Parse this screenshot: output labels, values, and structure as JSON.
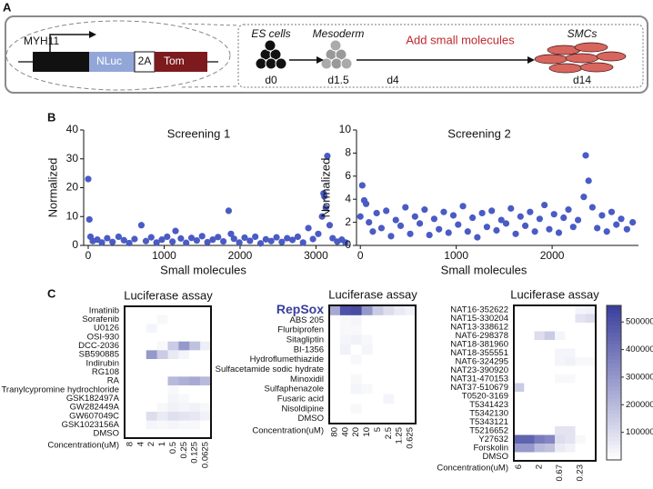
{
  "panel_labels": [
    "A",
    "B",
    "C"
  ],
  "diagram": {
    "gene": "MYH11",
    "segments": [
      "NLuc",
      "2A",
      "Tom"
    ],
    "stages": [
      {
        "label": "ES cells",
        "day": "d0"
      },
      {
        "label": "Mesoderm",
        "day": "d1.5"
      },
      {
        "label": "Add small molecules",
        "day": "d4"
      },
      {
        "label": "SMCs",
        "day": "d14"
      }
    ]
  },
  "color_scale": {
    "zlim": [
      0,
      560000
    ],
    "zticks": [
      100000,
      200000,
      300000,
      400000,
      500000
    ],
    "colors": [
      "#ffffff",
      "#393e9c"
    ]
  },
  "chart_data": [
    {
      "type": "scatter",
      "title": "Screening 1",
      "x_label": "Small molecules",
      "y_label": "Normalized",
      "color": "#4a5bc4",
      "xlim": [
        -60,
        3450
      ],
      "ylim": [
        0,
        40
      ],
      "xticks": [
        0,
        1000,
        2000,
        3000
      ],
      "yticks": [
        0,
        10,
        20,
        30,
        40
      ],
      "x": [
        0,
        15,
        30,
        60,
        120,
        180,
        250,
        320,
        400,
        470,
        540,
        610,
        700,
        760,
        830,
        900,
        970,
        1040,
        1110,
        1150,
        1220,
        1290,
        1360,
        1430,
        1500,
        1570,
        1640,
        1710,
        1780,
        1850,
        1880,
        1920,
        1990,
        2060,
        2130,
        2200,
        2270,
        2340,
        2410,
        2480,
        2550,
        2620,
        2690,
        2760,
        2830,
        2900,
        2960,
        3030,
        3080,
        3100,
        3110,
        3130,
        3150,
        3180,
        3220,
        3280,
        3340,
        3390
      ],
      "values": [
        23,
        9,
        3,
        1.5,
        2,
        1,
        2.5,
        1.2,
        3,
        1.8,
        0.8,
        2.2,
        7,
        1.5,
        2.8,
        1,
        2,
        3,
        1.3,
        5,
        2.4,
        0.9,
        2.6,
        1.7,
        3.2,
        1.1,
        2,
        2.9,
        1.4,
        12,
        4,
        2.3,
        1,
        2.7,
        1.6,
        3,
        0.7,
        2.1,
        1.5,
        2.8,
        1.2,
        2.5,
        1.9,
        3,
        1,
        6,
        2.2,
        4,
        10,
        18,
        17,
        13,
        31,
        7,
        2.5,
        1.3,
        2,
        1
      ]
    },
    {
      "type": "scatter",
      "title": "Screening 2",
      "x_label": "Small molecules",
      "y_label": "Normalized",
      "color": "#4a5bc4",
      "xlim": [
        -40,
        2900
      ],
      "ylim": [
        0,
        10
      ],
      "xticks": [
        0,
        1000,
        2000
      ],
      "yticks": [
        0,
        2,
        4,
        6,
        8,
        10
      ],
      "x": [
        0,
        20,
        40,
        60,
        90,
        130,
        170,
        220,
        270,
        320,
        370,
        420,
        470,
        520,
        570,
        620,
        670,
        720,
        770,
        820,
        870,
        920,
        970,
        1020,
        1070,
        1120,
        1170,
        1220,
        1270,
        1320,
        1370,
        1420,
        1470,
        1520,
        1570,
        1620,
        1670,
        1720,
        1770,
        1820,
        1870,
        1920,
        1970,
        2020,
        2070,
        2120,
        2170,
        2220,
        2270,
        2330,
        2350,
        2380,
        2420,
        2470,
        2520,
        2570,
        2620,
        2670,
        2720,
        2780,
        2840
      ],
      "values": [
        2.5,
        5.2,
        3.9,
        3.6,
        2,
        1.2,
        2.8,
        1.5,
        3,
        0.8,
        2.2,
        1.7,
        3.3,
        1,
        2.5,
        1.9,
        3.1,
        0.9,
        2.3,
        1.4,
        2.9,
        1.1,
        2.6,
        1.8,
        3.4,
        1.2,
        2.4,
        0.7,
        2.8,
        1.6,
        3,
        1.3,
        2.2,
        1.9,
        3.2,
        1,
        2.5,
        1.7,
        2.9,
        1.2,
        2.3,
        3.5,
        1.4,
        2.7,
        1.1,
        2.4,
        3.1,
        1.6,
        2.2,
        4.2,
        7.8,
        5.6,
        3.3,
        1.5,
        2.6,
        1.2,
        2.9,
        1.8,
        2.3,
        1.4,
        2
      ]
    },
    {
      "type": "heatmap",
      "title": "Luciferase assay",
      "x_label": "Concentration(uM)",
      "rows": [
        "Imatinib",
        "Sorafenib",
        "U0126",
        "OSI-930",
        "DCC-2036",
        "SB590885",
        "Indirubin",
        "RG108",
        "RA",
        "Tranylcypromine hydrochloride",
        "GSK182497A",
        "GW282449A",
        "GW607049C",
        "GSK1023156A",
        "DMSO"
      ],
      "columns": [
        8,
        4,
        2,
        1,
        0.5,
        0.25,
        0.125,
        0.0625
      ],
      "values": [
        [
          0,
          0,
          0,
          0,
          0,
          0,
          0,
          0
        ],
        [
          0,
          0,
          0,
          20000,
          0,
          0,
          0,
          0
        ],
        [
          0,
          0,
          30000,
          0,
          0,
          0,
          0,
          0
        ],
        [
          0,
          0,
          0,
          0,
          0,
          0,
          0,
          0
        ],
        [
          0,
          0,
          0,
          20000,
          150000,
          300000,
          180000,
          50000
        ],
        [
          0,
          0,
          300000,
          150000,
          60000,
          30000,
          0,
          0
        ],
        [
          0,
          0,
          0,
          0,
          0,
          0,
          0,
          0
        ],
        [
          0,
          0,
          0,
          0,
          0,
          0,
          0,
          0
        ],
        [
          0,
          0,
          0,
          0,
          200000,
          230000,
          250000,
          200000
        ],
        [
          0,
          0,
          0,
          0,
          20000,
          0,
          0,
          0
        ],
        [
          0,
          0,
          0,
          0,
          30000,
          20000,
          0,
          0
        ],
        [
          0,
          0,
          0,
          20000,
          40000,
          30000,
          40000,
          20000
        ],
        [
          0,
          0,
          100000,
          60000,
          90000,
          80000,
          70000,
          40000
        ],
        [
          0,
          0,
          30000,
          20000,
          30000,
          20000,
          20000,
          0
        ],
        [
          0,
          0,
          0,
          0,
          0,
          0,
          0,
          0
        ]
      ]
    },
    {
      "type": "heatmap",
      "title": "Luciferase assay",
      "x_label": "Concentration(uM)",
      "highlight_row": 0,
      "rows": [
        "RepSox",
        "ABS 205",
        "Flurbiprofen",
        "Sitagliptin",
        "BI-1356",
        "Hydroflumethiazide",
        "Sulfacetamide sodic hydrate",
        "Minoxidil",
        "Sulfaphenazole",
        "Fusaric acid",
        "Nisoldipine",
        "DMSO"
      ],
      "columns": [
        80,
        40,
        20,
        10,
        5,
        2.5,
        1.25,
        0.625
      ],
      "values": [
        [
          250000,
          500000,
          520000,
          300000,
          150000,
          100000,
          60000,
          40000
        ],
        [
          0,
          20000,
          30000,
          0,
          0,
          0,
          0,
          0
        ],
        [
          0,
          20000,
          20000,
          0,
          0,
          0,
          0,
          0
        ],
        [
          0,
          30000,
          40000,
          20000,
          0,
          0,
          0,
          0
        ],
        [
          0,
          40000,
          0,
          30000,
          0,
          0,
          0,
          0
        ],
        [
          0,
          0,
          20000,
          0,
          0,
          0,
          0,
          0
        ],
        [
          0,
          0,
          0,
          0,
          0,
          0,
          0,
          0
        ],
        [
          0,
          0,
          20000,
          0,
          0,
          0,
          0,
          0
        ],
        [
          0,
          0,
          30000,
          20000,
          0,
          0,
          0,
          0
        ],
        [
          0,
          0,
          0,
          0,
          0,
          30000,
          0,
          0
        ],
        [
          0,
          0,
          20000,
          0,
          0,
          0,
          0,
          0
        ],
        [
          0,
          0,
          0,
          0,
          0,
          0,
          0,
          0
        ]
      ]
    },
    {
      "type": "heatmap",
      "title": "Luciferase assay",
      "x_label": "Concentration(uM)",
      "rows": [
        "NAT16-352622",
        "NAT15-330204",
        "NAT13-338612",
        "NAT6-298378",
        "NAT18-381960",
        "NAT18-355551",
        "NAT6-324295",
        "NAT23-390920",
        "NAT31-470153",
        "NAT37-510679",
        "T0520-3169",
        "T5341423",
        "T5342130",
        "T5343121",
        "T5216652",
        "Y27632",
        "Forskolin",
        "DMSO"
      ],
      "columns": [
        6,
        null,
        2,
        null,
        0.67,
        null,
        0.23,
        null
      ],
      "values": [
        [
          0,
          0,
          0,
          0,
          0,
          0,
          30000,
          40000
        ],
        [
          0,
          0,
          0,
          0,
          0,
          0,
          80000,
          100000
        ],
        [
          0,
          0,
          0,
          0,
          0,
          0,
          0,
          0
        ],
        [
          0,
          0,
          100000,
          150000,
          30000,
          0,
          0,
          0
        ],
        [
          0,
          0,
          0,
          0,
          0,
          0,
          0,
          0
        ],
        [
          0,
          0,
          0,
          0,
          30000,
          30000,
          0,
          0
        ],
        [
          0,
          0,
          0,
          0,
          30000,
          40000,
          20000,
          20000
        ],
        [
          0,
          0,
          0,
          0,
          0,
          0,
          0,
          0
        ],
        [
          0,
          0,
          0,
          0,
          20000,
          20000,
          0,
          0
        ],
        [
          150000,
          0,
          0,
          0,
          0,
          0,
          0,
          0
        ],
        [
          0,
          0,
          0,
          0,
          0,
          0,
          0,
          0
        ],
        [
          0,
          0,
          0,
          0,
          0,
          0,
          0,
          0
        ],
        [
          0,
          0,
          0,
          0,
          0,
          0,
          0,
          0
        ],
        [
          0,
          0,
          0,
          0,
          0,
          0,
          0,
          0
        ],
        [
          0,
          0,
          0,
          0,
          80000,
          80000,
          0,
          0
        ],
        [
          450000,
          450000,
          380000,
          350000,
          100000,
          80000,
          20000,
          0
        ],
        [
          300000,
          300000,
          200000,
          180000,
          60000,
          40000,
          0,
          0
        ],
        [
          0,
          0,
          0,
          0,
          0,
          0,
          0,
          0
        ]
      ]
    }
  ]
}
